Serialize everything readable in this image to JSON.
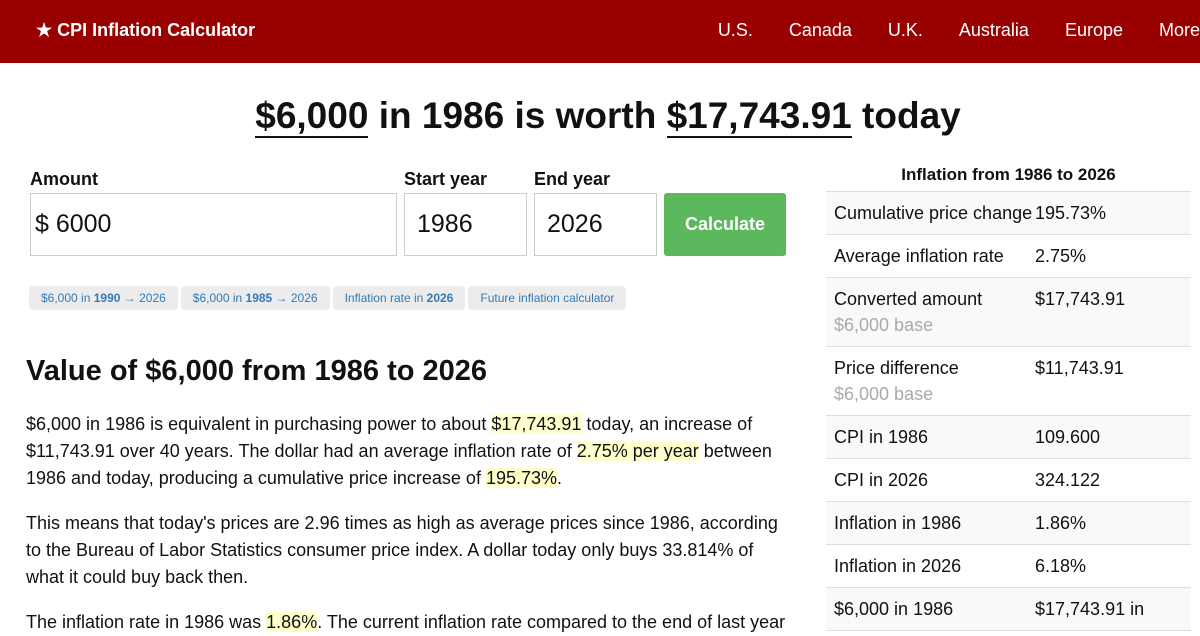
{
  "nav": {
    "brand": "★ CPI Inflation Calculator",
    "links": [
      "U.S.",
      "Canada",
      "U.K.",
      "Australia",
      "Europe",
      "More"
    ]
  },
  "headline": {
    "amount": "$6,000",
    "mid": " in 1986 is worth ",
    "value": "$17,743.91",
    "end": " today"
  },
  "form": {
    "amount_label": "Amount",
    "amount_value": "$ 6000",
    "start_label": "Start year",
    "start_value": "1986",
    "end_label": "End year",
    "end_value": "2026",
    "calculate": "Calculate"
  },
  "chips": [
    {
      "a": "$6,000 in ",
      "b": "1990",
      "c": " → 2026"
    },
    {
      "a": "$6,000 in ",
      "b": "1985",
      "c": " → 2026"
    },
    {
      "a": "Inflation rate in ",
      "b": "2026",
      "c": ""
    },
    {
      "a": "Future inflation calculator",
      "b": "",
      "c": ""
    }
  ],
  "section_title": "Value of $6,000 from 1986 to 2026",
  "p1": {
    "a": "$6,000 in 1986 is equivalent in purchasing power to about ",
    "h1": "$17,743.91",
    "b": " today, an increase of $11,743.91 over 40 years. The dollar had an average inflation rate of ",
    "h2": "2.75% per year",
    "c": " between 1986 and today, producing a cumulative price increase of ",
    "h3": "195.73%",
    "d": "."
  },
  "p2": "This means that today's prices are 2.96 times as high as average prices since 1986, according to the Bureau of Labor Statistics consumer price index. A dollar today only buys 33.814% of what it could buy back then.",
  "p3": {
    "a": "The inflation rate in 1986 was ",
    "h": "1.86%",
    "b": ". The current inflation rate compared to the end of last year"
  },
  "table": {
    "title": "Inflation from 1986 to 2026",
    "rows": [
      {
        "k": "Cumulative price change",
        "v": "195.73%",
        "s": ""
      },
      {
        "k": "Average inflation rate",
        "v": "2.75%",
        "s": ""
      },
      {
        "k": "Converted amount",
        "v": "$17,743.91",
        "s": "$6,000 base"
      },
      {
        "k": "Price difference",
        "v": "$11,743.91",
        "s": "$6,000 base"
      },
      {
        "k": "CPI in 1986",
        "v": "109.600",
        "s": ""
      },
      {
        "k": "CPI in 2026",
        "v": "324.122",
        "s": ""
      },
      {
        "k": "Inflation in 1986",
        "v": "1.86%",
        "s": ""
      },
      {
        "k": "Inflation in 2026",
        "v": "6.18%",
        "s": ""
      },
      {
        "k": "$6,000 in 1986",
        "v": "$17,743.91 in",
        "s": ""
      }
    ]
  }
}
